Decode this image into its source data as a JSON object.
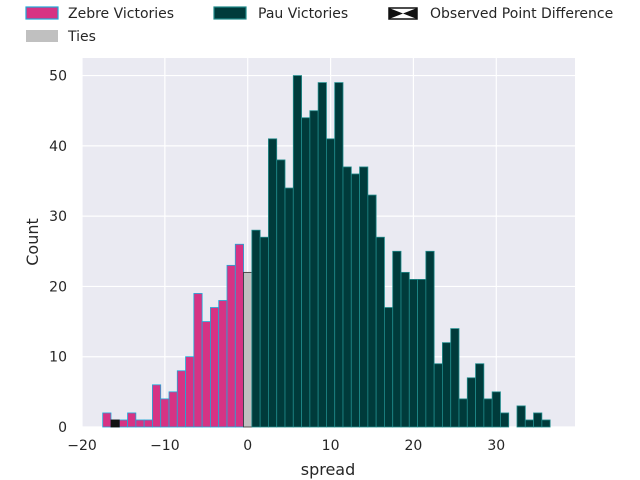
{
  "chart_data": {
    "type": "bar",
    "title": "",
    "xlabel": "spread",
    "ylabel": "Count",
    "xlim": [
      -20,
      39.5
    ],
    "ylim": [
      0,
      52.5
    ],
    "x_ticks": [
      -20,
      -10,
      0,
      10,
      20,
      30
    ],
    "x_tick_labels": [
      "−20",
      "−10",
      "0",
      "10",
      "20",
      "30"
    ],
    "y_ticks": [
      0,
      10,
      20,
      30,
      40,
      50
    ],
    "y_tick_labels": [
      "0",
      "10",
      "20",
      "30",
      "40",
      "50"
    ],
    "grid": true,
    "legend_position": "top",
    "colors": {
      "zebre_fill": "#d63384",
      "zebre_edge": "#1fa8d8",
      "pau_fill": "#003b3b",
      "pau_edge": "#1f8a8a",
      "ties_fill": "#c0c0c0",
      "observed_fill": "#111111",
      "plot_bg": "#eaeaf2",
      "grid": "#ffffff"
    },
    "legend": [
      {
        "key": "zebre",
        "label": "Zebre Victories"
      },
      {
        "key": "pau",
        "label": "Pau Victories"
      },
      {
        "key": "observed",
        "label": "Observed Point Difference"
      },
      {
        "key": "ties",
        "label": "Ties"
      }
    ],
    "series": [
      {
        "name": "Zebre Victories",
        "key": "zebre",
        "x": [
          -17,
          -16,
          -15,
          -14,
          -13,
          -12,
          -11,
          -10,
          -9,
          -8,
          -7,
          -6,
          -5,
          -4,
          -3,
          -2,
          -1
        ],
        "values": [
          2,
          1,
          1,
          2,
          1,
          1,
          6,
          4,
          5,
          8,
          10,
          19,
          15,
          17,
          18,
          23,
          26
        ]
      },
      {
        "name": "Ties",
        "key": "ties",
        "x": [
          0
        ],
        "values": [
          22
        ]
      },
      {
        "name": "Pau Victories",
        "key": "pau",
        "x": [
          1,
          2,
          3,
          4,
          5,
          6,
          7,
          8,
          9,
          10,
          11,
          12,
          13,
          14,
          15,
          16,
          17,
          18,
          19,
          20,
          21,
          22,
          23,
          24,
          25,
          26,
          27,
          28,
          29,
          30,
          31,
          33,
          34,
          35,
          36
        ],
        "values": [
          28,
          27,
          41,
          38,
          34,
          50,
          44,
          45,
          49,
          41,
          49,
          37,
          36,
          37,
          33,
          27,
          17,
          25,
          22,
          21,
          21,
          25,
          9,
          12,
          14,
          4,
          7,
          9,
          4,
          5,
          2,
          3,
          1,
          2,
          1
        ]
      }
    ],
    "observed_point_difference": {
      "x": -16,
      "height": 1
    }
  }
}
